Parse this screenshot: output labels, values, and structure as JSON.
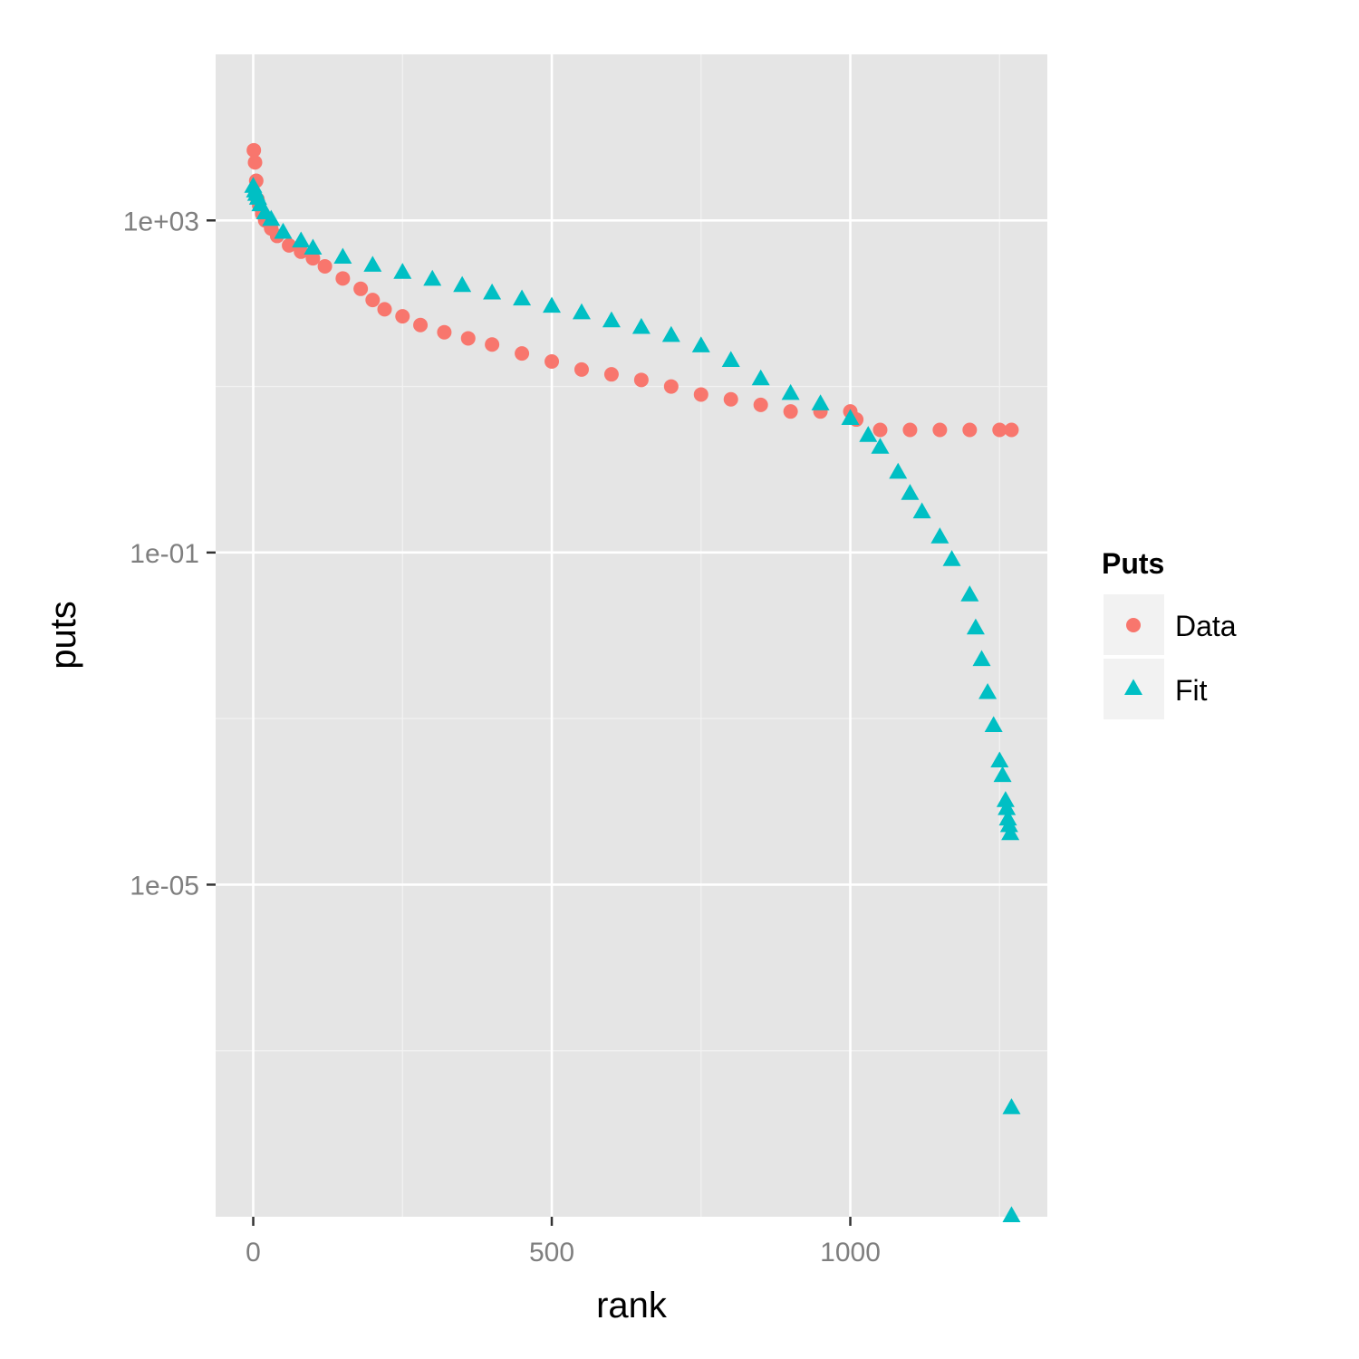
{
  "chart_data": {
    "type": "scatter",
    "title": "",
    "xlabel": "rank",
    "ylabel": "puts",
    "y_scale": "log10",
    "x_ticks": [
      {
        "value": 0,
        "label": "0"
      },
      {
        "value": 500,
        "label": "500"
      },
      {
        "value": 1000,
        "label": "1000"
      }
    ],
    "y_ticks": [
      {
        "value": 1000,
        "label": "1e+03"
      },
      {
        "value": 0.1,
        "label": "1e-01"
      },
      {
        "value": 1e-05,
        "label": "1e-05"
      }
    ],
    "xlim": [
      -63,
      1330
    ],
    "ylim": [
      1e-09,
      100000
    ],
    "grid": true,
    "legend": {
      "title": "Puts",
      "placement": "right",
      "entries": [
        {
          "label": "Data",
          "shape": "circle",
          "color": "#F8766D"
        },
        {
          "label": "Fit",
          "shape": "triangle",
          "color": "#00BFC4"
        }
      ]
    },
    "series": [
      {
        "name": "Data",
        "shape": "circle",
        "color": "#F8766D",
        "x": [
          1,
          3,
          5,
          7,
          10,
          15,
          20,
          30,
          40,
          60,
          80,
          100,
          120,
          150,
          180,
          200,
          220,
          250,
          280,
          320,
          360,
          400,
          450,
          500,
          550,
          600,
          650,
          700,
          750,
          800,
          850,
          900,
          950,
          1000,
          1010,
          1050,
          1100,
          1150,
          1200,
          1250,
          1270
        ],
        "y": [
          7000,
          5000,
          3000,
          1800,
          1500,
          1200,
          1000,
          800,
          650,
          500,
          420,
          350,
          280,
          200,
          150,
          110,
          85,
          70,
          55,
          45,
          38,
          32,
          25,
          20,
          16,
          14,
          12,
          10,
          8,
          7,
          6,
          5,
          5,
          5,
          4,
          3,
          3,
          3,
          3,
          3,
          3
        ]
      },
      {
        "name": "Fit",
        "shape": "triangle",
        "color": "#00BFC4",
        "x": [
          0,
          3,
          5,
          8,
          12,
          20,
          30,
          50,
          80,
          100,
          150,
          200,
          250,
          300,
          350,
          400,
          450,
          500,
          550,
          600,
          650,
          700,
          750,
          800,
          850,
          900,
          950,
          1000,
          1030,
          1050,
          1080,
          1100,
          1120,
          1150,
          1170,
          1200,
          1210,
          1220,
          1230,
          1240,
          1250,
          1255,
          1260,
          1262,
          1264,
          1266,
          1268,
          1270,
          1270
        ],
        "y": [
          2500,
          2200,
          2000,
          1800,
          1500,
          1200,
          1000,
          700,
          550,
          450,
          350,
          280,
          230,
          190,
          160,
          130,
          110,
          90,
          75,
          60,
          50,
          40,
          30,
          20,
          12,
          8,
          6,
          4,
          2.5,
          1.8,
          0.9,
          0.5,
          0.3,
          0.15,
          0.08,
          0.03,
          0.012,
          0.005,
          0.002,
          0.0008,
          0.0003,
          0.0002,
          0.0001,
          8e-05,
          6e-05,
          5e-05,
          4e-05,
          2e-08,
          1e-09
        ]
      }
    ]
  }
}
